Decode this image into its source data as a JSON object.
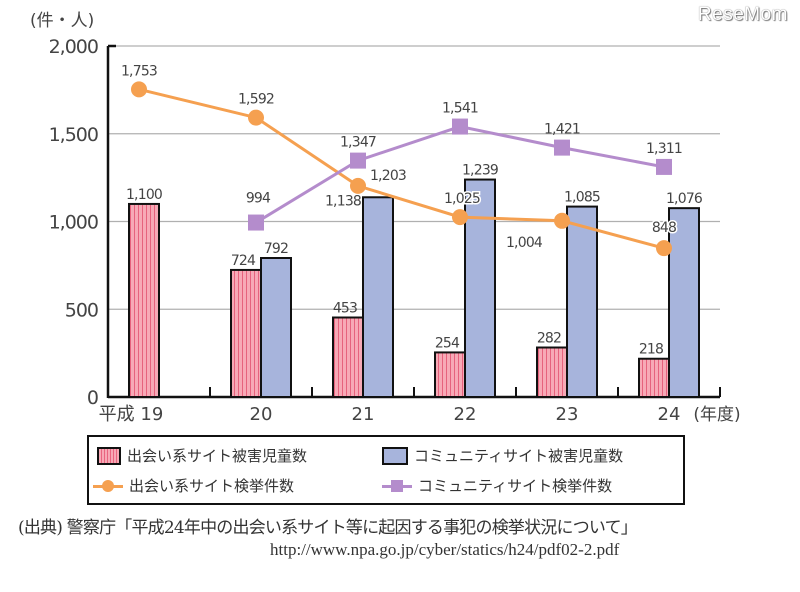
{
  "watermark": "ReseMom",
  "chart_data": {
    "type": "bar",
    "title": "",
    "ylabel": "(件・人)",
    "xlabel": "(年度)",
    "ylim": [
      0,
      2000
    ],
    "yticks": [
      0,
      500,
      1000,
      1500,
      2000
    ],
    "ytick_labels": [
      "0",
      "500",
      "1,000",
      "1,500",
      "2,000"
    ],
    "grid": true,
    "categories": [
      "平成 19",
      "20",
      "21",
      "22",
      "23",
      "24"
    ],
    "series": [
      {
        "name": "出会い系サイト被害児童数",
        "kind": "bar",
        "color": "#f4a0b0",
        "values": [
          1100,
          724,
          453,
          254,
          282,
          218
        ],
        "labels": [
          "1,100",
          "724",
          "453",
          "254",
          "282",
          "218"
        ]
      },
      {
        "name": "コミュニティサイト被害児童数",
        "kind": "bar",
        "color": "#a7b4dc",
        "values": [
          null,
          792,
          1138,
          1239,
          1085,
          1076
        ],
        "labels": [
          "",
          "792",
          "1,138",
          "1,239",
          "1,085",
          "1,076"
        ]
      },
      {
        "name": "出会い系サイト検挙件数",
        "kind": "line",
        "marker": "circle",
        "color": "#f5a050",
        "values": [
          1753,
          1592,
          1203,
          1025,
          1004,
          848
        ],
        "labels": [
          "1,753",
          "1,592",
          "1,203",
          "1,025",
          "1,004",
          "848"
        ]
      },
      {
        "name": "コミュニティサイト検挙件数",
        "kind": "line",
        "marker": "square",
        "color": "#b48ccc",
        "values": [
          null,
          994,
          1347,
          1541,
          1421,
          1311
        ],
        "labels": [
          "",
          "994",
          "1,347",
          "1,541",
          "1,421",
          "1,311"
        ]
      }
    ],
    "legend_position": "bottom"
  },
  "source": {
    "citation": "(出典) 警察庁「平成24年中の出会い系サイト等に起因する事犯の検挙状況について」",
    "url": "http://www.npa.go.jp/cyber/statics/h24/pdf02-2.pdf"
  }
}
